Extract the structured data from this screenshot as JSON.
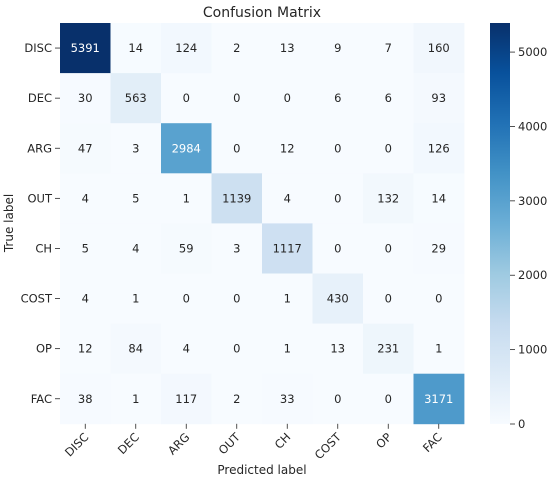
{
  "chart_data": {
    "type": "heatmap",
    "title": "Confusion Matrix",
    "xlabel": "Predicted label",
    "ylabel": "True label",
    "x_categories": [
      "DISC",
      "DEC",
      "ARG",
      "OUT",
      "CH",
      "COST",
      "OP",
      "FAC"
    ],
    "y_categories": [
      "DISC",
      "DEC",
      "ARG",
      "OUT",
      "CH",
      "COST",
      "OP",
      "FAC"
    ],
    "values": [
      [
        5391,
        14,
        124,
        2,
        13,
        9,
        7,
        160
      ],
      [
        30,
        563,
        0,
        0,
        0,
        6,
        6,
        93
      ],
      [
        47,
        3,
        2984,
        0,
        12,
        0,
        0,
        126
      ],
      [
        4,
        5,
        1,
        1139,
        4,
        0,
        132,
        14
      ],
      [
        5,
        4,
        59,
        3,
        1117,
        0,
        0,
        29
      ],
      [
        4,
        1,
        0,
        0,
        1,
        430,
        0,
        0
      ],
      [
        12,
        84,
        4,
        0,
        1,
        13,
        231,
        1
      ],
      [
        38,
        1,
        117,
        2,
        33,
        0,
        0,
        3171
      ]
    ],
    "colorbar": {
      "min": 0,
      "max": 5391,
      "ticks": [
        0,
        1000,
        2000,
        3000,
        4000,
        5000
      ],
      "colormap": "Blues",
      "low_color": "#f7fbff",
      "high_color": "#08306b"
    }
  }
}
